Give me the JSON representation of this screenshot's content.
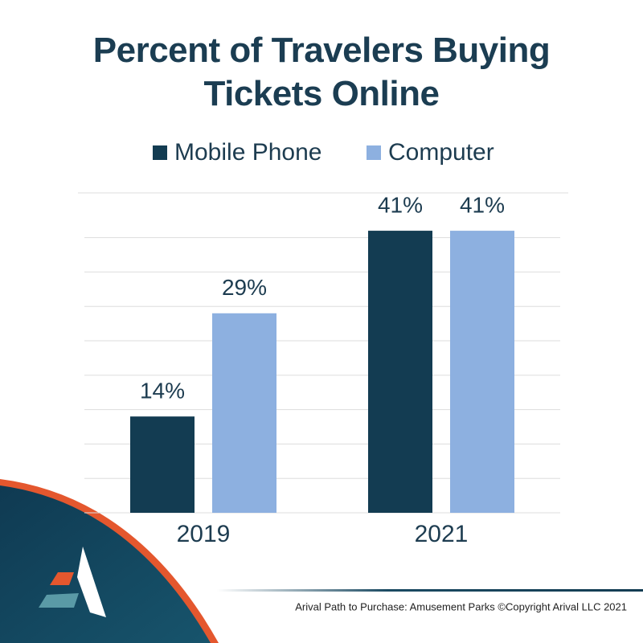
{
  "chart_data": {
    "type": "bar",
    "title": "Percent of Travelers Buying Tickets Online",
    "categories": [
      "2019",
      "2021"
    ],
    "series": [
      {
        "name": "Mobile Phone",
        "color": "#133c52",
        "values": [
          14,
          41
        ],
        "value_labels": [
          "14%",
          "41%"
        ]
      },
      {
        "name": "Computer",
        "color": "#8db0e0",
        "values": [
          29,
          41
        ],
        "value_labels": [
          "29%",
          "41%"
        ]
      }
    ],
    "ylim": [
      0,
      46.5
    ],
    "yticks": [
      0,
      5,
      10,
      15,
      20,
      25,
      30,
      35,
      40
    ],
    "grid": true,
    "legend": "top",
    "source": "Arival Path to Purchase: Amusement Parks  ©Copyright Arival LLC 2021"
  }
}
